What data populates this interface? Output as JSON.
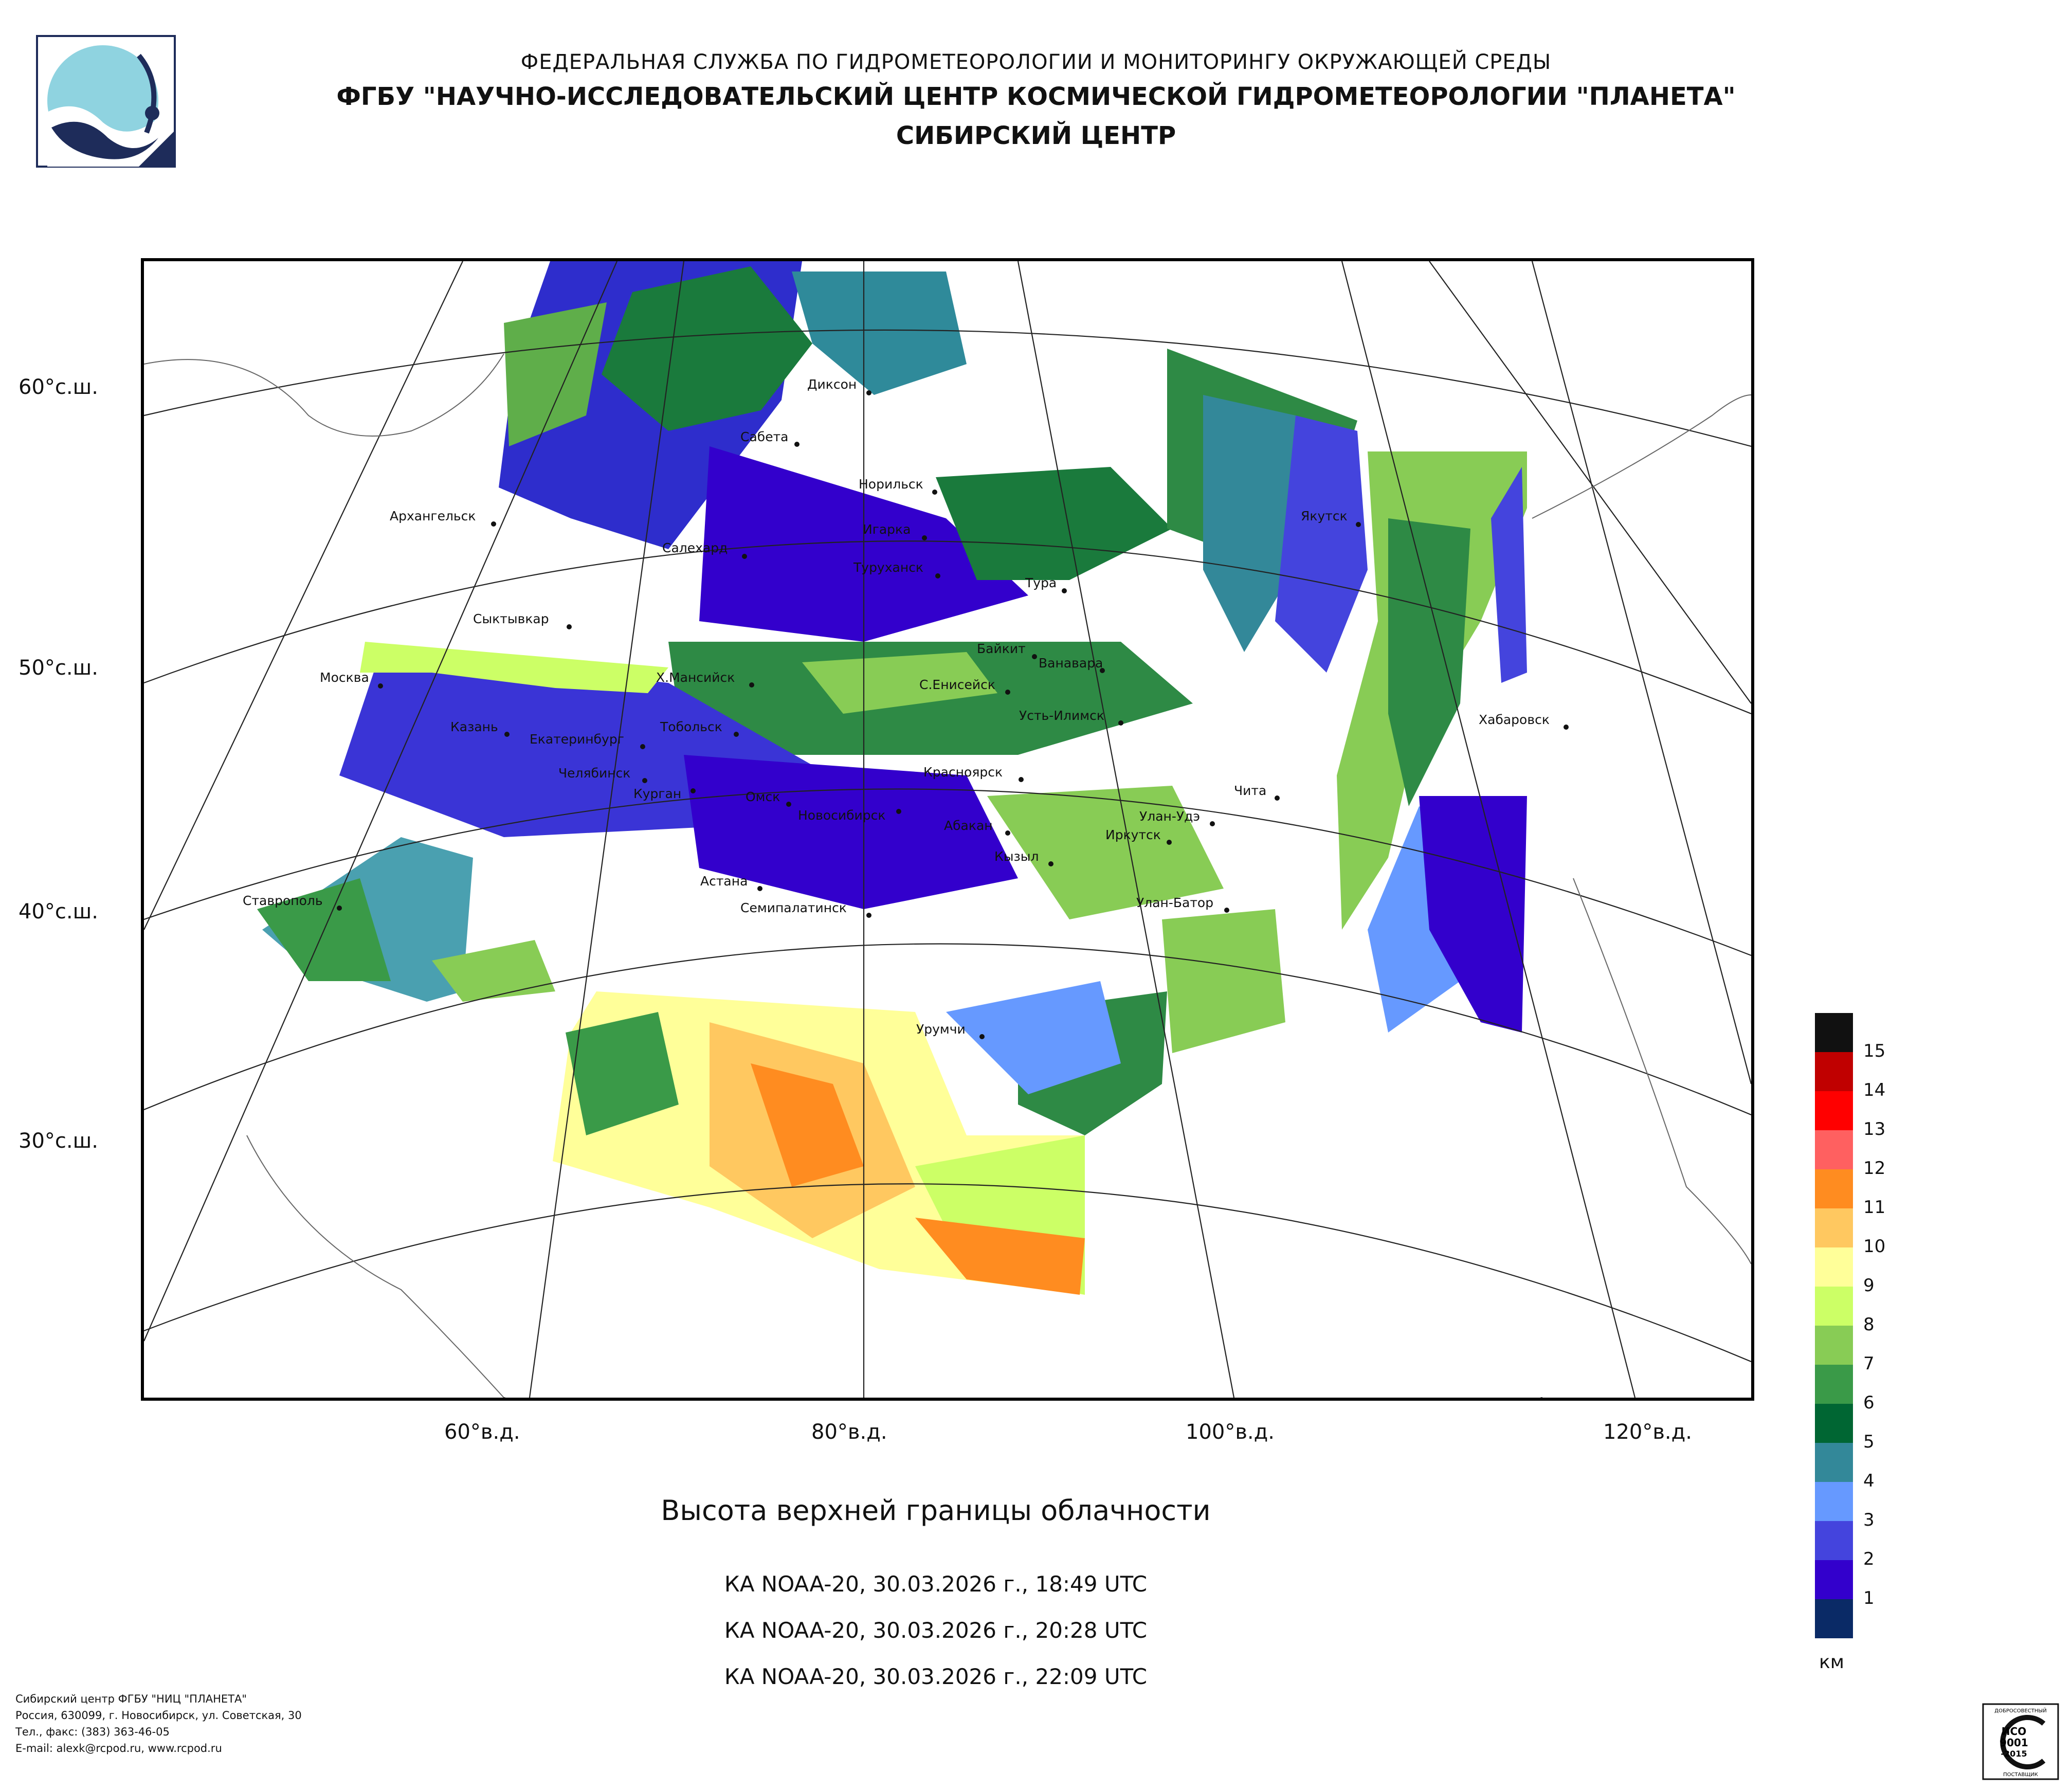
{
  "header": {
    "line1": "ФЕДЕРАЛЬНАЯ СЛУЖБА ПО ГИДРОМЕТЕОРОЛОГИИ И МОНИТОРИНГУ ОКРУЖАЮЩЕЙ СРЕДЫ",
    "line2": "ФГБУ \"НАУЧНО-ИССЛЕДОВАТЕЛЬСКИЙ ЦЕНТР КОСМИЧЕСКОЙ ГИДРОМЕТЕОРОЛОГИИ \"ПЛАНЕТА\"",
    "line3": "СИБИРСКИЙ ЦЕНТР"
  },
  "map": {
    "lat_labels": [
      "60°с.ш.",
      "50°с.ш.",
      "40°с.ш.",
      "30°с.ш."
    ],
    "lon_labels": [
      "60°в.д.",
      "80°в.д.",
      "100°в.д.",
      "120°в.д."
    ],
    "cities": [
      "Диксон",
      "Сабета",
      "Норильск",
      "Архангельск",
      "Салехард",
      "Игарка",
      "Туруханск",
      "Якутск",
      "Тура",
      "Сыктывкар",
      "Байкит",
      "Ванавара",
      "Москва",
      "Х.Мансийск",
      "С.Енисейск",
      "Усть-Илимск",
      "Хабаровск",
      "Казань",
      "Тобольск",
      "Екатеринбург",
      "Красноярск",
      "Челябинск",
      "Курган",
      "Чита",
      "Омск",
      "Новосибирск",
      "Абакан",
      "Улан-Удэ",
      "Иркутск",
      "Кызыл",
      "Астана",
      "Ставрополь",
      "Семипалатинск",
      "Улан-Батор",
      "Урумчи"
    ]
  },
  "legend": {
    "labels": [
      "15",
      "14",
      "13",
      "12",
      "11",
      "10",
      "9",
      "8",
      "7",
      "6",
      "5",
      "4",
      "3",
      "2",
      "1"
    ],
    "colors": [
      "#111111",
      "#c00000",
      "#ff0000",
      "#ff6060",
      "#ff8c20",
      "#ffc860",
      "#ffff99",
      "#ccff66",
      "#88cc55",
      "#3a9a48",
      "#006633",
      "#338899",
      "#6699ff",
      "#4444dd",
      "#3300cc",
      "#0a2a66"
    ],
    "unit": "км"
  },
  "title": "Высота верхней границы облачности",
  "passes": [
    "КА NOAA-20, 30.03.2026 г., 18:49 UTC",
    "КА NOAA-20, 30.03.2026 г., 20:28 UTC",
    "КА NOAA-20, 30.03.2026 г., 22:09 UTC"
  ],
  "footer": {
    "line1": "Сибирский центр ФГБУ \"НИЦ \"ПЛАНЕТА\"",
    "line2": "Россия, 630099, г. Новосибирск, ул. Советская, 30",
    "line3": "Тел., факс: (383) 363-46-05",
    "line4": "E-mail: alexk@rcpod.ru, www.rcpod.ru"
  },
  "iso_badge": {
    "top": "ДОБРОСОВЕСТНЫЙ",
    "line1": "ИСО",
    "line2": "9001",
    "line3": "-2015",
    "bottom": "ПОСТАВЩИК"
  }
}
